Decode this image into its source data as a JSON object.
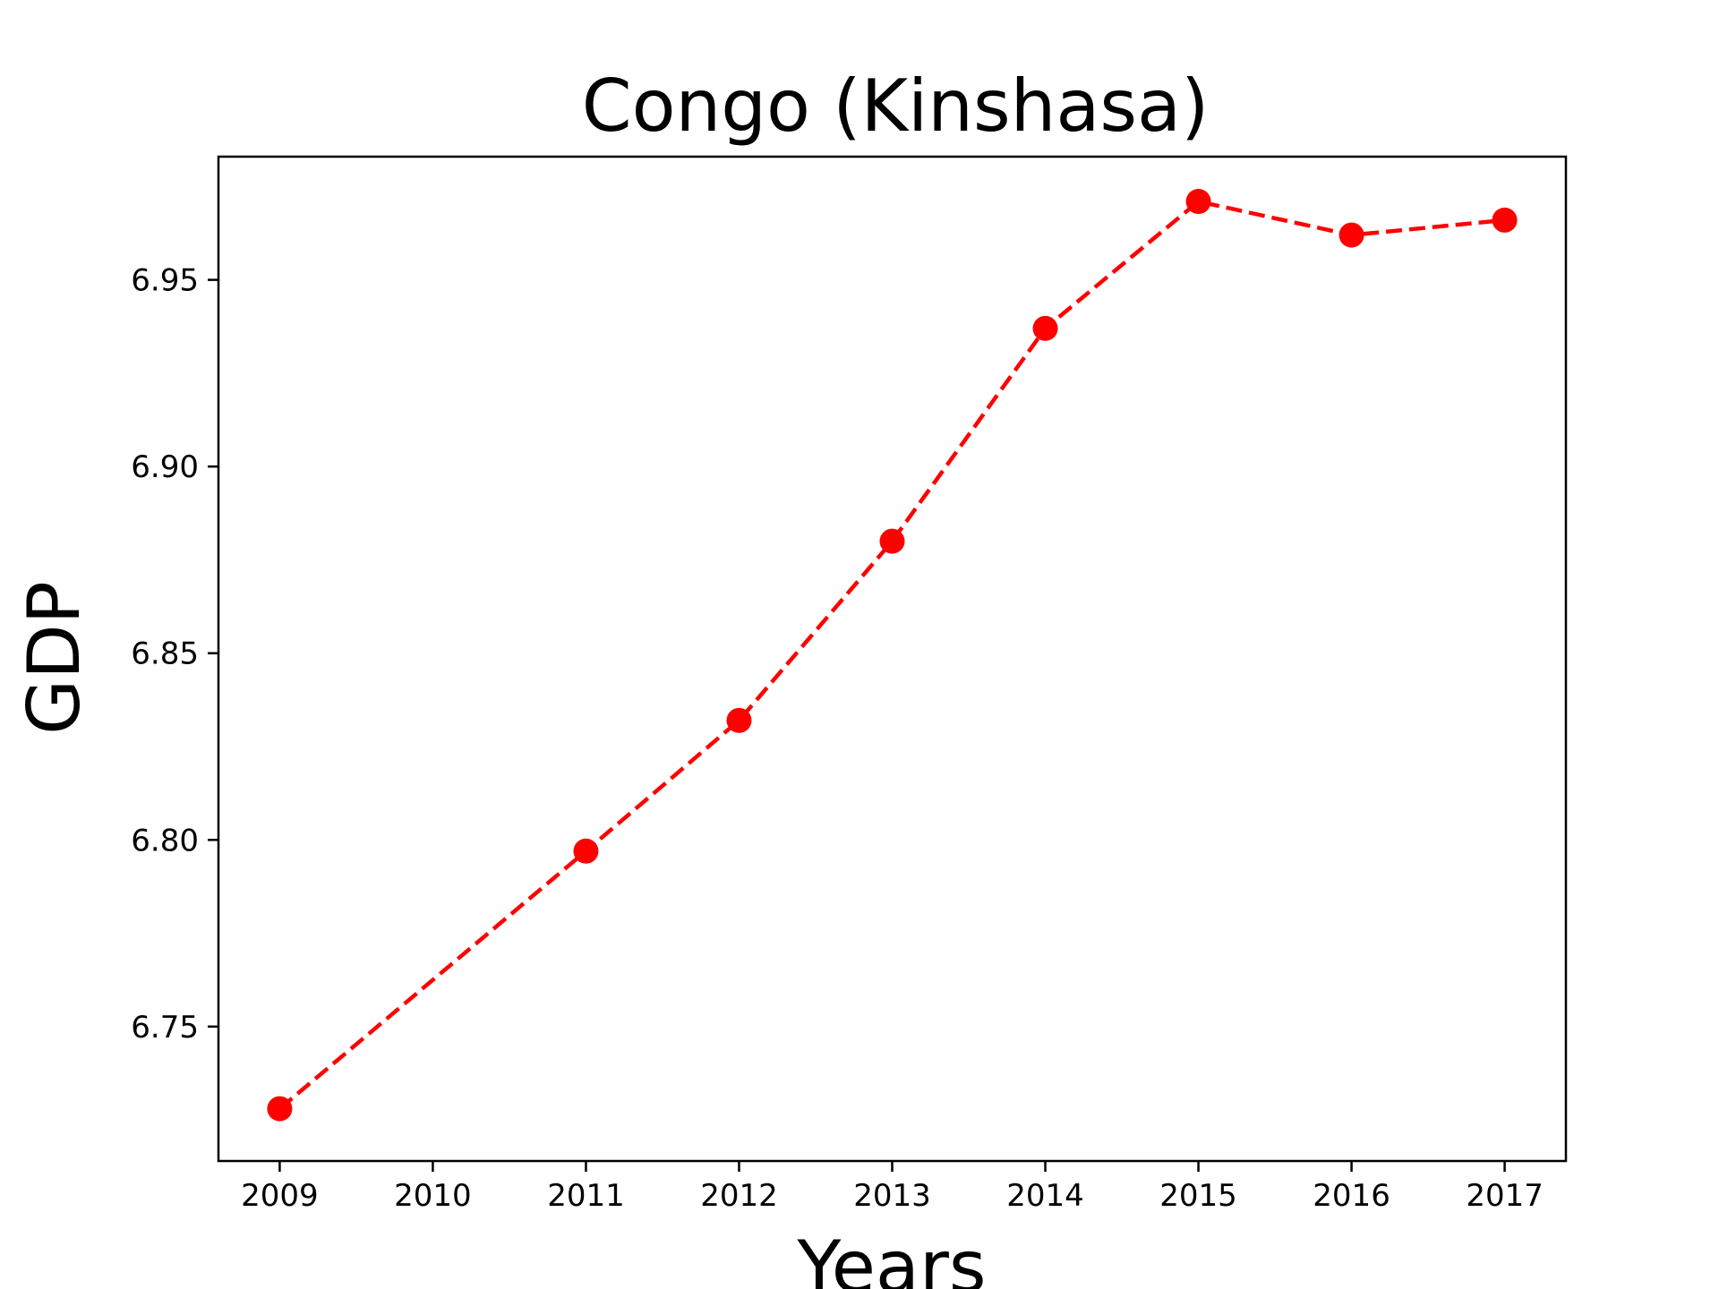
{
  "chart_data": {
    "type": "line",
    "title": "Congo (Kinshasa)",
    "xlabel": "Years",
    "ylabel": "GDP",
    "x_ticks": [
      "2009",
      "2010",
      "2011",
      "2012",
      "2013",
      "2014",
      "2015",
      "2016",
      "2017"
    ],
    "y_ticks": [
      "6.75",
      "6.80",
      "6.85",
      "6.90",
      "6.95"
    ],
    "xlim": [
      2008.6,
      2017.4
    ],
    "ylim": [
      6.714,
      6.983
    ],
    "grid": false,
    "legend": false,
    "series": [
      {
        "x": [
          2009,
          2011,
          2012,
          2013,
          2014,
          2015,
          2016,
          2017
        ],
        "y": [
          6.728,
          6.797,
          6.832,
          6.88,
          6.937,
          6.971,
          6.962,
          6.966
        ],
        "color": "#ff0000",
        "line_style": "dashed",
        "marker": "circle"
      }
    ]
  }
}
